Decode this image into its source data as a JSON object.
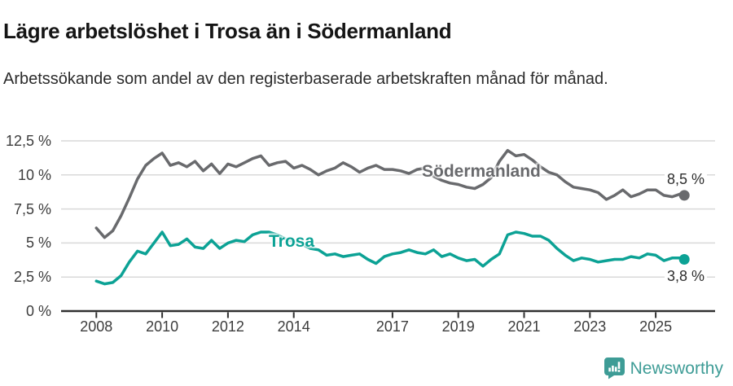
{
  "header": {
    "title": "Lägre arbetslöshet i Trosa än i Södermanland",
    "subtitle": "Arbetssökande som andel av den registerbaserade arbetskraften månad för månad."
  },
  "chart_data": {
    "type": "line",
    "x_unit": "year",
    "y_unit": "percent",
    "xlim": [
      2007.85,
      2026.1
    ],
    "ylim": [
      0,
      12.5
    ],
    "grid": "horizontal",
    "grid_color": "#d9d9d9",
    "axis_color": "#303030",
    "x": [
      2008.0,
      2008.25,
      2008.5,
      2008.75,
      2009.0,
      2009.25,
      2009.5,
      2009.75,
      2010.0,
      2010.25,
      2010.5,
      2010.75,
      2011.0,
      2011.25,
      2011.5,
      2011.75,
      2012.0,
      2012.25,
      2012.5,
      2012.75,
      2013.0,
      2013.25,
      2013.5,
      2013.75,
      2014.0,
      2014.25,
      2014.5,
      2014.75,
      2015.0,
      2015.25,
      2015.5,
      2015.75,
      2016.0,
      2016.25,
      2016.5,
      2016.75,
      2017.0,
      2017.25,
      2017.5,
      2017.75,
      2018.0,
      2018.25,
      2018.5,
      2018.75,
      2019.0,
      2019.25,
      2019.5,
      2019.75,
      2020.0,
      2020.25,
      2020.5,
      2020.75,
      2021.0,
      2021.25,
      2021.5,
      2021.75,
      2022.0,
      2022.25,
      2022.5,
      2022.75,
      2023.0,
      2023.25,
      2023.5,
      2023.75,
      2024.0,
      2024.25,
      2024.5,
      2024.75,
      2025.0,
      2025.25,
      2025.5,
      2025.75,
      2025.87
    ],
    "series": [
      {
        "name": "Södermanland",
        "color": "#696a6d",
        "end_label": "8,5 %",
        "end_value": 8.5,
        "values": [
          6.1,
          5.4,
          5.9,
          7.0,
          8.3,
          9.7,
          10.7,
          11.2,
          11.6,
          10.7,
          10.9,
          10.6,
          11.0,
          10.3,
          10.8,
          10.1,
          10.8,
          10.6,
          10.9,
          11.2,
          11.4,
          10.7,
          10.9,
          11.0,
          10.5,
          10.7,
          10.4,
          10.0,
          10.3,
          10.5,
          10.9,
          10.6,
          10.2,
          10.5,
          10.7,
          10.4,
          10.4,
          10.3,
          10.1,
          10.4,
          10.5,
          9.9,
          9.6,
          9.4,
          9.3,
          9.1,
          9.0,
          9.3,
          9.8,
          11.0,
          11.8,
          11.4,
          11.5,
          11.1,
          10.6,
          10.2,
          10.0,
          9.5,
          9.1,
          9.0,
          8.9,
          8.7,
          8.2,
          8.5,
          8.9,
          8.4,
          8.6,
          8.9,
          8.9,
          8.5,
          8.4,
          8.6,
          8.5
        ]
      },
      {
        "name": "Trosa",
        "color": "#0ca295",
        "end_label": "3,8 %",
        "end_value": 3.8,
        "values": [
          2.2,
          2.0,
          2.1,
          2.6,
          3.6,
          4.4,
          4.2,
          5.0,
          5.8,
          4.8,
          4.9,
          5.3,
          4.7,
          4.6,
          5.2,
          4.6,
          5.0,
          5.2,
          5.1,
          5.6,
          5.8,
          5.8,
          5.6,
          5.3,
          5.1,
          4.9,
          4.6,
          4.5,
          4.1,
          4.2,
          4.0,
          4.1,
          4.2,
          3.8,
          3.5,
          4.0,
          4.2,
          4.3,
          4.5,
          4.3,
          4.2,
          4.5,
          4.0,
          4.2,
          3.9,
          3.7,
          3.8,
          3.3,
          3.8,
          4.2,
          5.6,
          5.8,
          5.7,
          5.5,
          5.5,
          5.2,
          4.6,
          4.1,
          3.7,
          3.9,
          3.8,
          3.6,
          3.7,
          3.8,
          3.8,
          4.0,
          3.9,
          4.2,
          4.1,
          3.7,
          3.9,
          3.9,
          3.8
        ]
      },
      {
        "name2": null
      }
    ],
    "y_ticks": [
      {
        "value": 12.5,
        "label": "12,5 %"
      },
      {
        "value": 10,
        "label": "10 %"
      },
      {
        "value": 7.5,
        "label": "7,5 %"
      },
      {
        "value": 5,
        "label": "5 %"
      },
      {
        "value": 2.5,
        "label": "2,5 %"
      },
      {
        "value": 0,
        "label": "0 %"
      }
    ],
    "x_ticks": [
      {
        "value": 2008,
        "label": "2008"
      },
      {
        "value": 2010,
        "label": "2010"
      },
      {
        "value": 2012,
        "label": "2012"
      },
      {
        "value": 2014,
        "label": "2014"
      },
      {
        "value": 2017,
        "label": "2017"
      },
      {
        "value": 2019,
        "label": "2019"
      },
      {
        "value": 2021,
        "label": "2021"
      },
      {
        "value": 2023,
        "label": "2023"
      },
      {
        "value": 2025,
        "label": "2025"
      }
    ]
  },
  "footer": {
    "brand": "Newsworthy",
    "brand_color": "#3e9c96"
  }
}
